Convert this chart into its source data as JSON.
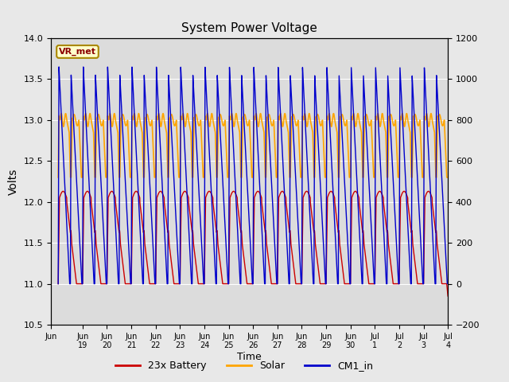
{
  "title": "System Power Voltage",
  "xlabel": "Time",
  "ylabel": "Volts",
  "ylim_left": [
    10.5,
    14.0
  ],
  "ylim_right": [
    -200,
    1200
  ],
  "annotation_text": "VR_met",
  "colors": {
    "battery": "#cc0000",
    "solar": "#ffa500",
    "cm1": "#0000cc"
  },
  "legend_labels": [
    "23x Battery",
    "Solar",
    "CM1_in"
  ],
  "right_yticks": [
    -200,
    0,
    200,
    400,
    600,
    800,
    1000,
    1200
  ],
  "left_yticks": [
    10.5,
    11.0,
    11.5,
    12.0,
    12.5,
    13.0,
    13.5,
    14.0
  ],
  "figsize": [
    6.4,
    4.8
  ],
  "dpi": 100,
  "bg_color": "#e8e8e8",
  "plot_bg_color": "#dcdcdc"
}
